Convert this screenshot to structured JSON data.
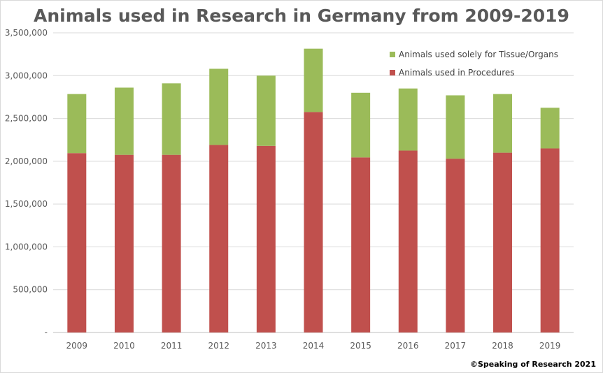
{
  "chart_data": {
    "type": "bar",
    "stacked": true,
    "title": "Animals used in Research in Germany from 2009-2019",
    "categories": [
      "2009",
      "2010",
      "2011",
      "2012",
      "2013",
      "2014",
      "2015",
      "2016",
      "2017",
      "2018",
      "2019"
    ],
    "series": [
      {
        "name": "Animals used in Procedures",
        "color": "#c0504d",
        "values": [
          2095000,
          2075000,
          2075000,
          2190000,
          2180000,
          2575000,
          2045000,
          2125000,
          2030000,
          2100000,
          2150000
        ]
      },
      {
        "name": "Animals used solely for Tissue/Organs",
        "color": "#9bbb59",
        "values": [
          690000,
          785000,
          835000,
          890000,
          820000,
          740000,
          755000,
          725000,
          740000,
          685000,
          475000
        ]
      }
    ],
    "ylim": [
      0,
      3500000
    ],
    "yticks": [
      "-",
      "500,000",
      "1,000,000",
      "1,500,000",
      "2,000,000",
      "2,500,000",
      "3,000,000",
      "3,500,000"
    ],
    "ytick_values": [
      0,
      500000,
      1000000,
      1500000,
      2000000,
      2500000,
      3000000,
      3500000
    ],
    "grid": true,
    "legend_position": "top-right",
    "legend_order": [
      1,
      0
    ],
    "xlabel": "",
    "ylabel": ""
  },
  "credit": "©Speaking of Research 2021"
}
